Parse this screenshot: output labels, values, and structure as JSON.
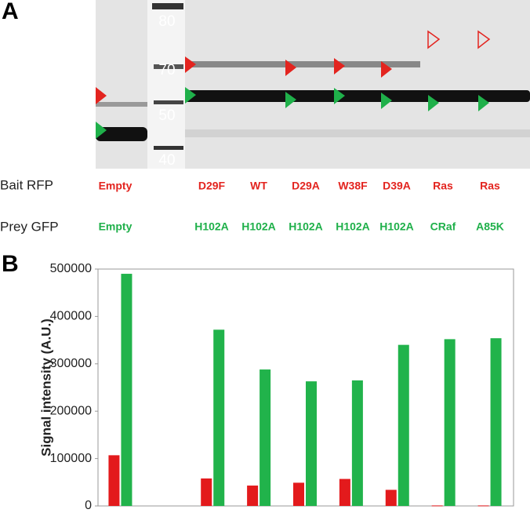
{
  "panels": {
    "a": "A",
    "b": "B"
  },
  "blot": {
    "markers": [
      "80",
      "70",
      "50",
      "40"
    ]
  },
  "lanes": {
    "bait_label": "Bait RFP",
    "prey_label": "Prey GFP",
    "bait": [
      "Empty",
      "D29F",
      "WT",
      "D29A",
      "W38F",
      "D39A",
      "Ras",
      "Ras"
    ],
    "prey": [
      "Empty",
      "H102A",
      "H102A",
      "H102A",
      "H102A",
      "H102A",
      "CRaf",
      "A85K"
    ]
  },
  "chart_data": {
    "type": "bar",
    "y_label": "Signal intensity (A.U.)",
    "categories": [
      null,
      null,
      null,
      null,
      null,
      null,
      null,
      null,
      null
    ],
    "series": [
      {
        "color": "#e31a1c",
        "values": [
          107000,
          null,
          58000,
          43000,
          49000,
          57000,
          34000,
          1000,
          1000
        ]
      },
      {
        "color": "#21b34b",
        "values": [
          490000,
          null,
          372000,
          288000,
          263000,
          265000,
          340000,
          352000,
          354000
        ]
      }
    ],
    "ylim": [
      0,
      500000
    ],
    "yticks": [
      0,
      100000,
      200000,
      300000,
      400000,
      500000
    ]
  }
}
